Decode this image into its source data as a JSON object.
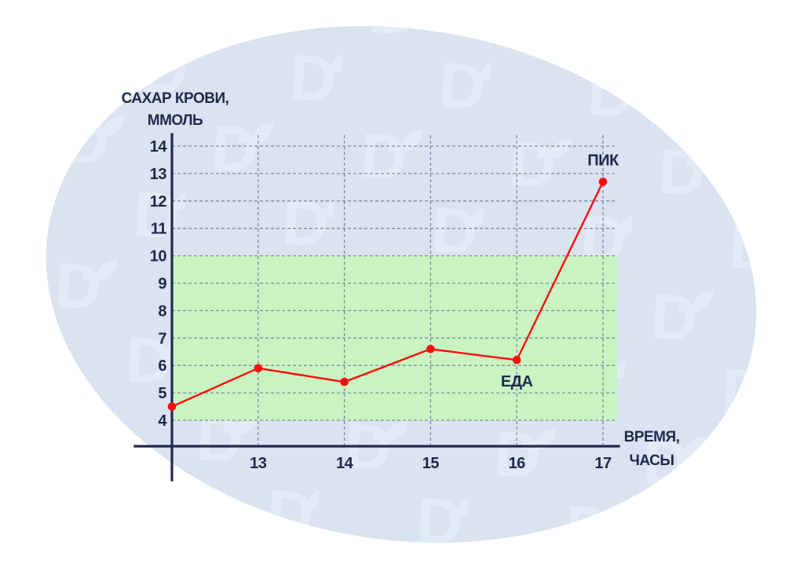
{
  "background": {
    "watermark_letter": "D"
  },
  "chart_data": {
    "type": "line",
    "title": "",
    "ylabel_lines": [
      "САХАР КРОВИ,",
      "ММОЛЬ"
    ],
    "xlabel_lines": [
      "ВРЕМЯ,",
      "ЧАСЫ"
    ],
    "x": [
      12,
      13,
      14,
      15,
      16,
      17
    ],
    "series": [
      {
        "name": "blood-sugar-mmol",
        "values": [
          4.5,
          5.9,
          5.4,
          6.6,
          6.2,
          12.7
        ]
      }
    ],
    "yticks": [
      4,
      5,
      6,
      7,
      8,
      9,
      10,
      11,
      12,
      13,
      14
    ],
    "xticks": [
      13,
      14,
      15,
      16,
      17
    ],
    "ylim": [
      4,
      14
    ],
    "xlim": [
      12,
      17
    ],
    "normal_range": [
      4,
      10
    ],
    "grid": "dashed",
    "legend": "none",
    "annotations": [
      {
        "label": "ЕДА",
        "hour": 16,
        "position": "below"
      },
      {
        "label": "ПИК",
        "hour": 17,
        "position": "above"
      }
    ],
    "colors": {
      "line": "#fb0d0d",
      "band": "#c9f4c2",
      "axis": "#212a4d",
      "grid": "#828ca0",
      "text": "#212a4d",
      "ellipse": "#d9e3f1",
      "watermark": "#e3ebf7"
    }
  }
}
